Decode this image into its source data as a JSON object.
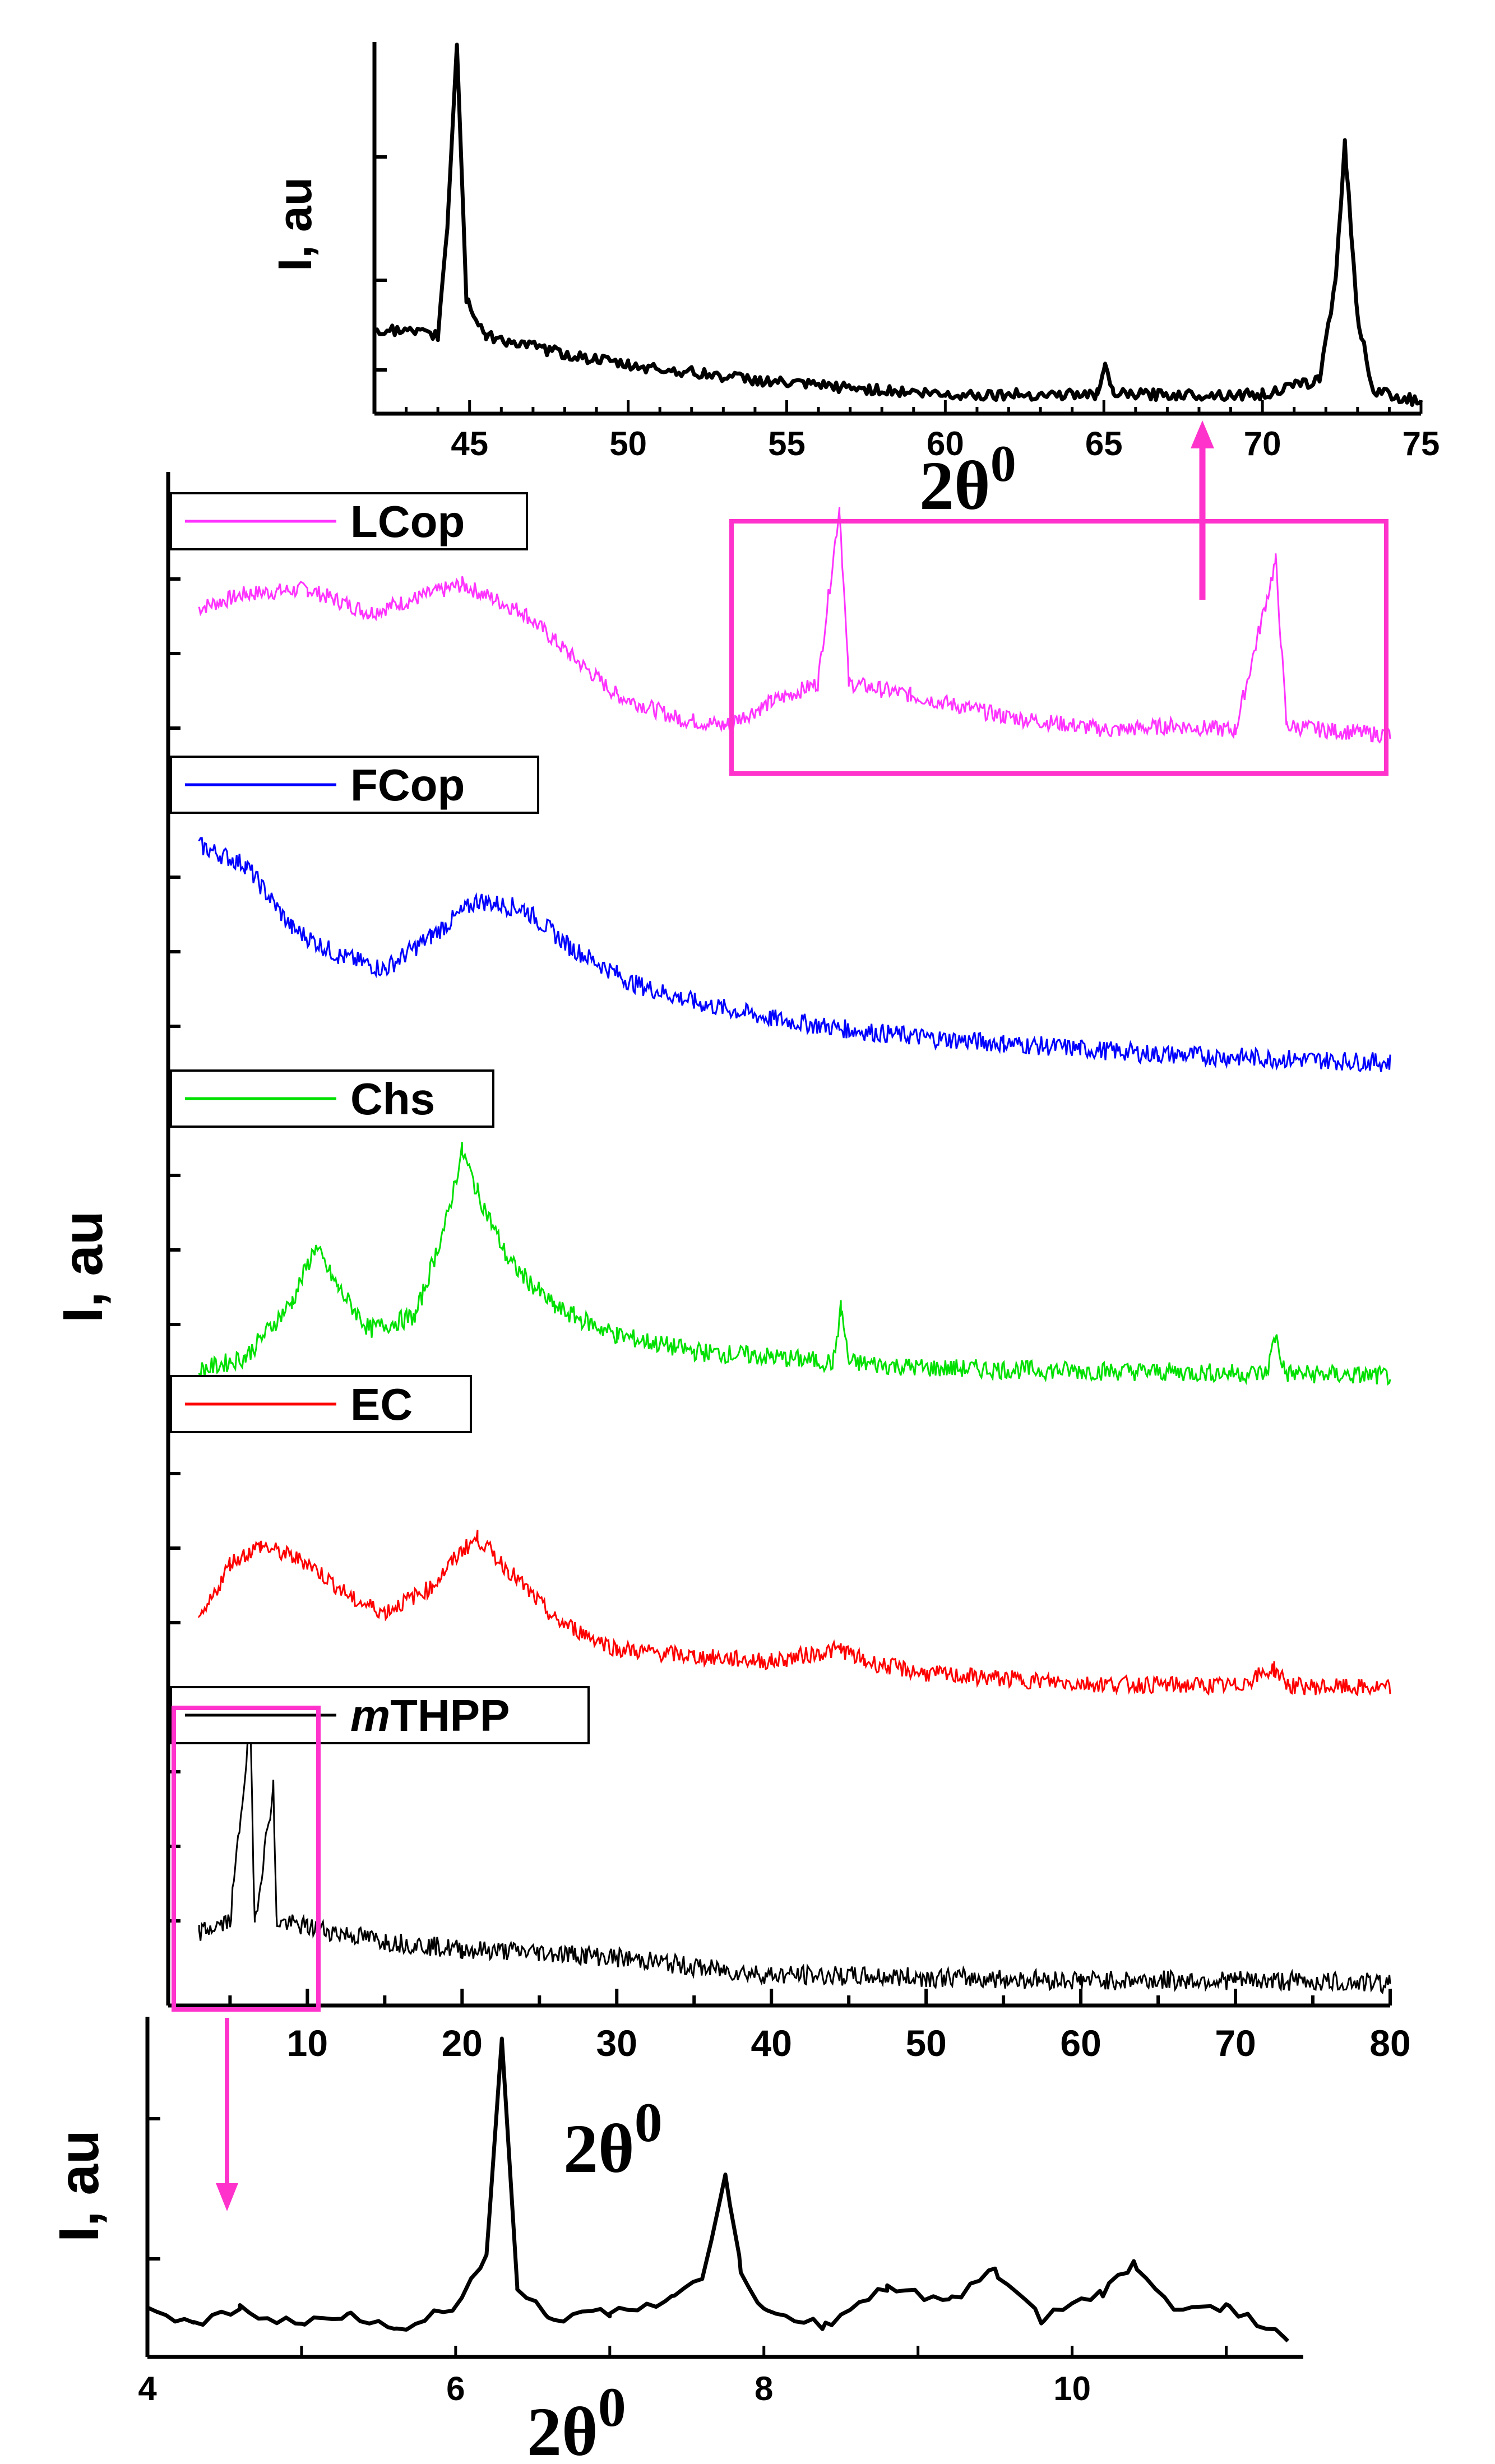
{
  "colors": {
    "LCop": "#ff33ff",
    "FCop": "#0000ff",
    "Chs": "#00e000",
    "EC": "#ff0000",
    "mTHPP": "#000000",
    "highlight": "#ff33cc"
  },
  "chart_data": [
    {
      "id": "main",
      "type": "line",
      "title": "",
      "xlabel_base": "2θ",
      "xlabel_sup": "0",
      "ylabel": "I, au",
      "xlim": [
        1,
        80
      ],
      "xticks": [
        10,
        20,
        30,
        40,
        50,
        60,
        70,
        80
      ],
      "yticks_visible": false,
      "series": [
        {
          "name": "LCop",
          "legend": "LCop",
          "color": "#ff33ff",
          "points": [
            [
              3,
              0.62
            ],
            [
              6,
              0.68
            ],
            [
              10,
              0.7
            ],
            [
              14,
              0.6
            ],
            [
              17,
              0.66
            ],
            [
              20,
              0.72
            ],
            [
              24,
              0.6
            ],
            [
              27,
              0.42
            ],
            [
              30,
              0.25
            ],
            [
              34,
              0.15
            ],
            [
              37,
              0.12
            ],
            [
              40,
              0.22
            ],
            [
              43,
              0.3
            ],
            [
              44.4,
              1.05
            ],
            [
              45,
              0.3
            ],
            [
              49,
              0.25
            ],
            [
              55,
              0.16
            ],
            [
              62,
              0.1
            ],
            [
              66,
              0.12
            ],
            [
              70,
              0.1
            ],
            [
              72.6,
              0.82
            ],
            [
              73.3,
              0.12
            ],
            [
              76,
              0.1
            ],
            [
              80,
              0.08
            ]
          ]
        },
        {
          "name": "FCop",
          "legend": "FCop",
          "color": "#0000ff",
          "points": [
            [
              3,
              0.85
            ],
            [
              6,
              0.78
            ],
            [
              9,
              0.55
            ],
            [
              12,
              0.45
            ],
            [
              15,
              0.4
            ],
            [
              18,
              0.52
            ],
            [
              21,
              0.65
            ],
            [
              24,
              0.62
            ],
            [
              27,
              0.48
            ],
            [
              31,
              0.35
            ],
            [
              35,
              0.28
            ],
            [
              40,
              0.22
            ],
            [
              45,
              0.18
            ],
            [
              50,
              0.15
            ],
            [
              55,
              0.13
            ],
            [
              60,
              0.11
            ],
            [
              65,
              0.09
            ],
            [
              70,
              0.08
            ],
            [
              75,
              0.07
            ],
            [
              80,
              0.06
            ]
          ]
        },
        {
          "name": "Chs",
          "legend": "Chs",
          "color": "#00e000",
          "points": [
            [
              3,
              0.05
            ],
            [
              6,
              0.1
            ],
            [
              9,
              0.3
            ],
            [
              10.5,
              0.5
            ],
            [
              12,
              0.35
            ],
            [
              14,
              0.2
            ],
            [
              17,
              0.25
            ],
            [
              19,
              0.6
            ],
            [
              20,
              0.85
            ],
            [
              21,
              0.7
            ],
            [
              23,
              0.45
            ],
            [
              26,
              0.28
            ],
            [
              30,
              0.18
            ],
            [
              35,
              0.12
            ],
            [
              40,
              0.1
            ],
            [
              44,
              0.08
            ],
            [
              44.5,
              0.28
            ],
            [
              45,
              0.08
            ],
            [
              50,
              0.06
            ],
            [
              60,
              0.05
            ],
            [
              72,
              0.04
            ],
            [
              72.6,
              0.18
            ],
            [
              73.2,
              0.04
            ],
            [
              80,
              0.03
            ]
          ]
        },
        {
          "name": "EC",
          "legend": "EC",
          "color": "#ff0000",
          "points": [
            [
              3,
              0.3
            ],
            [
              5,
              0.55
            ],
            [
              7,
              0.62
            ],
            [
              10,
              0.55
            ],
            [
              13,
              0.4
            ],
            [
              15,
              0.35
            ],
            [
              18,
              0.45
            ],
            [
              20,
              0.6
            ],
            [
              21,
              0.65
            ],
            [
              23,
              0.52
            ],
            [
              26,
              0.32
            ],
            [
              30,
              0.2
            ],
            [
              35,
              0.17
            ],
            [
              40,
              0.15
            ],
            [
              44.5,
              0.2
            ],
            [
              46,
              0.15
            ],
            [
              50,
              0.1
            ],
            [
              60,
              0.06
            ],
            [
              70,
              0.05
            ],
            [
              72.5,
              0.12
            ],
            [
              73.5,
              0.05
            ],
            [
              80,
              0.04
            ]
          ]
        },
        {
          "name": "mTHPP",
          "legend": "THPP",
          "legend_prefix": "m",
          "color": "#000000",
          "points": [
            [
              3,
              0.2
            ],
            [
              5,
              0.24
            ],
            [
              6.3,
              0.95
            ],
            [
              6.6,
              0.24
            ],
            [
              7.8,
              0.72
            ],
            [
              8,
              0.24
            ],
            [
              10,
              0.22
            ],
            [
              15,
              0.17
            ],
            [
              20,
              0.14
            ],
            [
              25,
              0.13
            ],
            [
              28,
              0.12
            ],
            [
              32,
              0.1
            ],
            [
              36,
              0.07
            ],
            [
              40,
              0.05
            ],
            [
              50,
              0.04
            ],
            [
              60,
              0.03
            ],
            [
              70,
              0.03
            ],
            [
              80,
              0.02
            ]
          ]
        }
      ],
      "inset_box_x_range": [
        38,
        80
      ]
    },
    {
      "id": "inset-top",
      "type": "line",
      "xlabel_base": "2θ",
      "xlabel_sup": "0",
      "ylabel": "I, au",
      "xlim": [
        42,
        75
      ],
      "xticks": [
        45,
        50,
        55,
        60,
        65,
        70,
        75
      ],
      "series": [
        {
          "name": "LCop (zoom)",
          "color": "#000000",
          "points": [
            [
              42,
              0.22
            ],
            [
              44,
              0.2
            ],
            [
              44.3,
              0.5
            ],
            [
              44.6,
              1.0
            ],
            [
              44.9,
              0.3
            ],
            [
              45.5,
              0.2
            ],
            [
              48,
              0.15
            ],
            [
              50,
              0.12
            ],
            [
              55,
              0.07
            ],
            [
              60,
              0.04
            ],
            [
              64.8,
              0.04
            ],
            [
              65,
              0.12
            ],
            [
              65.3,
              0.04
            ],
            [
              70,
              0.04
            ],
            [
              71.8,
              0.08
            ],
            [
              72.3,
              0.35
            ],
            [
              72.6,
              0.72
            ],
            [
              73,
              0.25
            ],
            [
              73.5,
              0.05
            ],
            [
              75,
              0.02
            ]
          ]
        }
      ]
    },
    {
      "id": "inset-bottom",
      "type": "line",
      "xlabel_base": "2θ",
      "xlabel_sup": "0",
      "ylabel": "I, au",
      "xlim": [
        4,
        11.5
      ],
      "xticks": [
        4,
        6,
        8,
        10
      ],
      "series": [
        {
          "name": "mTHPP (zoom)",
          "color": "#000000",
          "points": [
            [
              4,
              0.12
            ],
            [
              4.3,
              0.08
            ],
            [
              4.6,
              0.13
            ],
            [
              5,
              0.08
            ],
            [
              5.3,
              0.12
            ],
            [
              5.6,
              0.06
            ],
            [
              6,
              0.14
            ],
            [
              6.2,
              0.3
            ],
            [
              6.3,
              0.97
            ],
            [
              6.4,
              0.2
            ],
            [
              6.6,
              0.1
            ],
            [
              7,
              0.12
            ],
            [
              7.4,
              0.16
            ],
            [
              7.6,
              0.22
            ],
            [
              7.75,
              0.55
            ],
            [
              7.85,
              0.25
            ],
            [
              8,
              0.12
            ],
            [
              8.4,
              0.08
            ],
            [
              8.8,
              0.2
            ],
            [
              9.2,
              0.15
            ],
            [
              9.5,
              0.25
            ],
            [
              9.8,
              0.1
            ],
            [
              10.2,
              0.18
            ],
            [
              10.4,
              0.27
            ],
            [
              10.7,
              0.12
            ],
            [
              11,
              0.14
            ],
            [
              11.4,
              0.04
            ]
          ]
        }
      ]
    }
  ]
}
